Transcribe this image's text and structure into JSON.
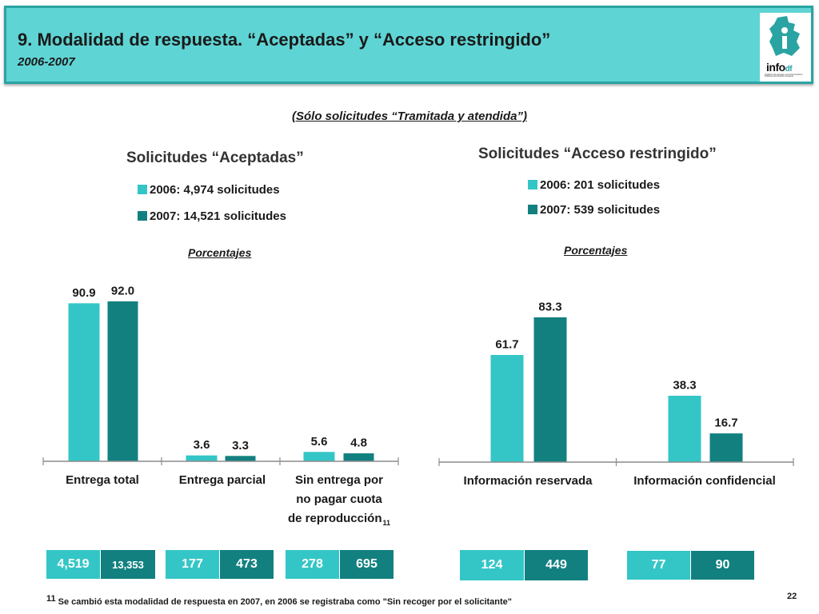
{
  "header": {
    "title": "9. Modalidad de respuesta. “Aceptadas” y “Acceso restringido”",
    "subtitle": "2006-2007",
    "logo": {
      "text": "info",
      "text_df": "df",
      "fine_print": "Instituto de Acceso a la Información Pública del Distrito Federal",
      "icon": "df-map-icon"
    }
  },
  "note": "(Sólo solicitudes “Tramitada y atendida”)",
  "colors": {
    "series_2006": "#34c6c6",
    "series_2007": "#138080",
    "header_bg": "#5fd4d4",
    "header_border": "#2aa3a3"
  },
  "left": {
    "title": "Solicitudes “Aceptadas”",
    "legend": [
      "2006: 4,974 solicitudes",
      "2007: 14,521 solicitudes"
    ],
    "pct_label": "Porcentajes",
    "categories": [
      {
        "lines": [
          "Entrega total"
        ],
        "sup": ""
      },
      {
        "lines": [
          "Entrega parcial"
        ],
        "sup": ""
      },
      {
        "lines": [
          "Sin entrega por",
          "no pagar cuota",
          "de reproducción"
        ],
        "sup": "11"
      }
    ],
    "counts": [
      [
        "4,519",
        "13,353"
      ],
      [
        "177",
        "473"
      ],
      [
        "278",
        "695"
      ]
    ]
  },
  "right": {
    "title": "Solicitudes “Acceso restringido”",
    "legend": [
      "2006: 201 solicitudes",
      "2007: 539 solicitudes"
    ],
    "pct_label": "Porcentajes",
    "categories": [
      {
        "lines": [
          "Información reservada"
        ],
        "sup": ""
      },
      {
        "lines": [
          "Información confidencial"
        ],
        "sup": ""
      }
    ],
    "counts": [
      [
        "124",
        "449"
      ],
      [
        "77",
        "90"
      ]
    ]
  },
  "chart_data": [
    {
      "type": "bar",
      "title": "Solicitudes “Aceptadas”",
      "ylabel": "Porcentajes",
      "categories": [
        "Entrega total",
        "Entrega parcial",
        "Sin entrega por no pagar cuota de reproducción"
      ],
      "series": [
        {
          "name": "2006: 4,974 solicitudes",
          "values": [
            90.9,
            3.6,
            5.6
          ]
        },
        {
          "name": "2007: 14,521 solicitudes",
          "values": [
            92.0,
            3.3,
            4.8
          ]
        }
      ],
      "ylim": [
        0,
        100
      ],
      "grid": false,
      "legend": "top"
    },
    {
      "type": "bar",
      "title": "Solicitudes “Acceso restringido”",
      "ylabel": "Porcentajes",
      "categories": [
        "Información reservada",
        "Información confidencial"
      ],
      "series": [
        {
          "name": "2006: 201 solicitudes",
          "values": [
            61.7,
            38.3
          ]
        },
        {
          "name": "2007: 539 solicitudes",
          "values": [
            83.3,
            16.7
          ]
        }
      ],
      "ylim": [
        0,
        100
      ],
      "grid": false,
      "legend": "top"
    }
  ],
  "footnote": {
    "num": "11",
    "text": "Se cambió esta modalidad de respuesta en 2007, en 2006 se registraba como \"Sin recoger por el solicitante\""
  },
  "page_number": "22"
}
